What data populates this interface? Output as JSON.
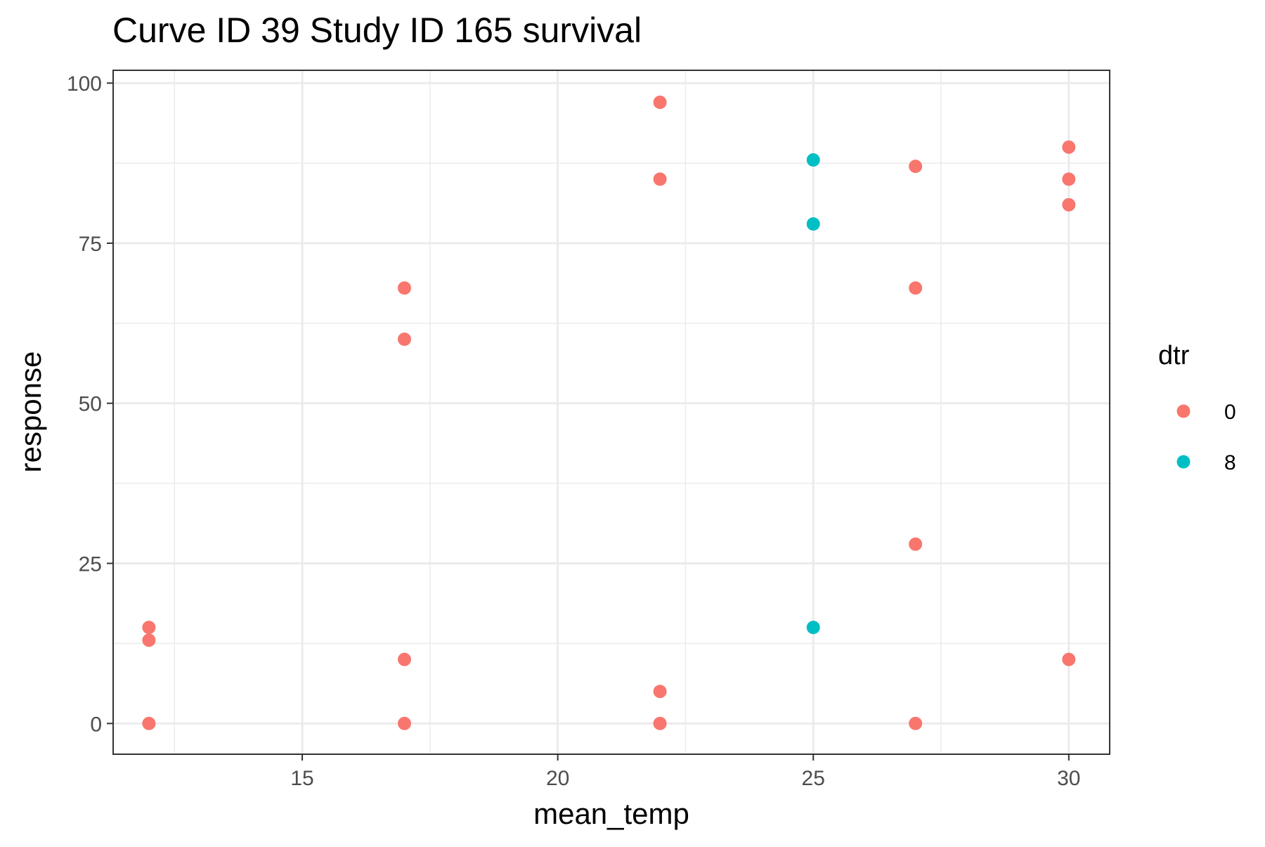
{
  "chart_data": {
    "type": "scatter",
    "title": "Curve ID 39 Study ID 165 survival",
    "xlabel": "mean_temp",
    "ylabel": "response",
    "xlim": [
      11.3,
      30.8
    ],
    "ylim": [
      -4.8,
      102
    ],
    "x_ticks": [
      15,
      20,
      25,
      30
    ],
    "x_tick_labels": [
      "15",
      "20",
      "25",
      "30"
    ],
    "y_ticks": [
      0,
      25,
      50,
      75,
      100
    ],
    "y_tick_labels": [
      "0",
      "25",
      "50",
      "75",
      "100"
    ],
    "grid": true,
    "legend": {
      "title": "dtr",
      "placement": "right"
    },
    "series": [
      {
        "name": "0",
        "color": "#F8766D",
        "points": [
          {
            "x": 12,
            "y": 15
          },
          {
            "x": 12,
            "y": 13
          },
          {
            "x": 12,
            "y": 0
          },
          {
            "x": 17,
            "y": 68
          },
          {
            "x": 17,
            "y": 60
          },
          {
            "x": 17,
            "y": 10
          },
          {
            "x": 17,
            "y": 0
          },
          {
            "x": 22,
            "y": 97
          },
          {
            "x": 22,
            "y": 85
          },
          {
            "x": 22,
            "y": 5
          },
          {
            "x": 22,
            "y": 0
          },
          {
            "x": 27,
            "y": 87
          },
          {
            "x": 27,
            "y": 68
          },
          {
            "x": 27,
            "y": 28
          },
          {
            "x": 27,
            "y": 0
          },
          {
            "x": 30,
            "y": 90
          },
          {
            "x": 30,
            "y": 85
          },
          {
            "x": 30,
            "y": 81
          },
          {
            "x": 30,
            "y": 10
          }
        ]
      },
      {
        "name": "8",
        "color": "#00BFC4",
        "points": [
          {
            "x": 25,
            "y": 88
          },
          {
            "x": 25,
            "y": 78
          },
          {
            "x": 25,
            "y": 15
          }
        ]
      }
    ]
  }
}
